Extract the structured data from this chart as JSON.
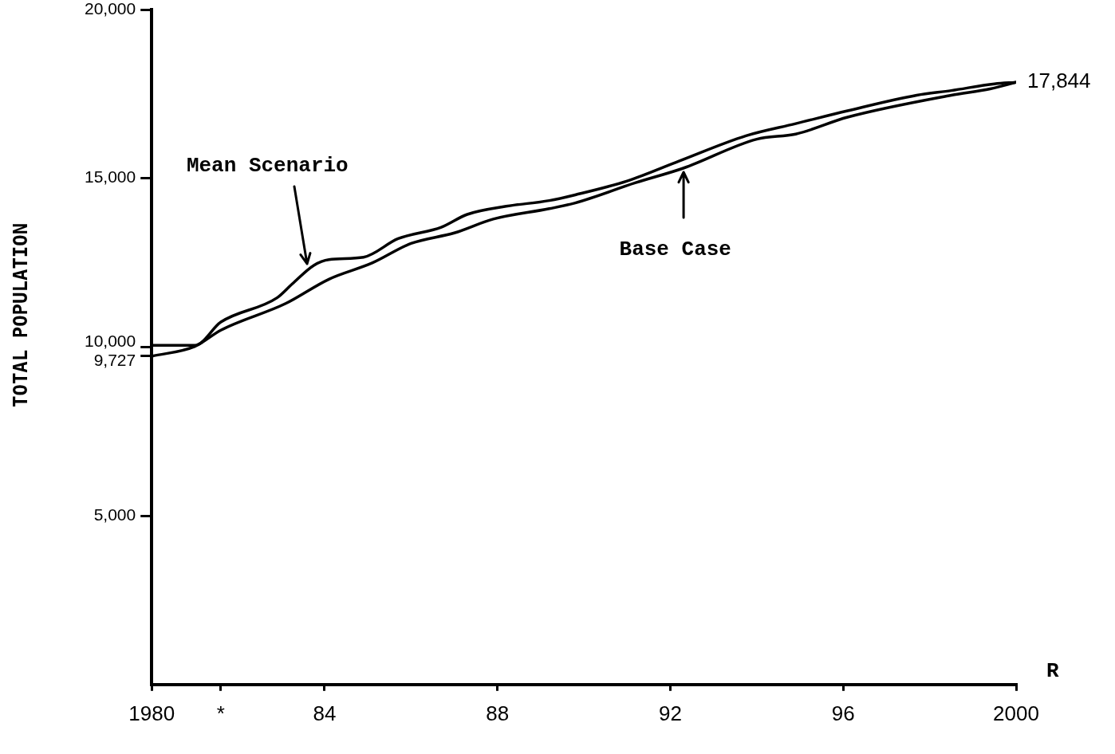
{
  "chart_data": {
    "type": "line",
    "ylabel": "TOTAL POPULATION",
    "xlabel": "R",
    "xlim": [
      1980,
      2000
    ],
    "xticks": [
      {
        "value": 1980,
        "label": "1980"
      },
      {
        "value": 1981.6,
        "label": "*"
      },
      {
        "value": 1984,
        "label": "84"
      },
      {
        "value": 1988,
        "label": "88"
      },
      {
        "value": 1992,
        "label": "92"
      },
      {
        "value": 1996,
        "label": "96"
      },
      {
        "value": 2000,
        "label": "2000"
      }
    ],
    "ylim": [
      0,
      20000
    ],
    "yticks": [
      {
        "value": 5000,
        "label": "5,000"
      },
      {
        "value": 9727,
        "label": "9,727"
      },
      {
        "value": 10000,
        "label": "10,000"
      },
      {
        "value": 15000,
        "label": "15,000"
      },
      {
        "value": 20000,
        "label": "20,000"
      }
    ],
    "grid": false,
    "legend": false,
    "marker": "none",
    "line_style": "solid",
    "series": [
      {
        "color": "#000000",
        "x": [
          1980,
          1981,
          1981.6,
          1982.9,
          1983.25,
          1983.75,
          1984.1,
          1984.9,
          1985.7,
          1986.7,
          1987.3,
          1988.2,
          1989.2,
          1989.8,
          1991,
          1992.2,
          1993.75,
          1994.9,
          1996.1,
          1997.7,
          1998.5,
          1999.5,
          2000
        ],
        "values": [
          10050,
          10050,
          10740,
          11460,
          11870,
          12420,
          12590,
          12660,
          13210,
          13550,
          13930,
          14170,
          14340,
          14510,
          14920,
          15510,
          16260,
          16620,
          17000,
          17460,
          17600,
          17800,
          17844
        ]
      },
      {
        "color": "#000000",
        "x": [
          1980,
          1981,
          1981.6,
          1983.1,
          1984.1,
          1985.1,
          1986,
          1987,
          1987.9,
          1989.2,
          1989.8,
          1991.2,
          1992.3,
          1994,
          1994.9,
          1996.1,
          1998.5,
          1999.4,
          2000
        ],
        "values": [
          9727,
          10020,
          10500,
          11290,
          12010,
          12490,
          13070,
          13380,
          13790,
          14100,
          14270,
          14870,
          15300,
          16160,
          16310,
          16810,
          17460,
          17650,
          17844
        ]
      }
    ],
    "annotations": [
      {
        "text": "Mean Scenario",
        "x": 1983.6,
        "y": 12400
      },
      {
        "text": "Base Case",
        "x": 1992.3,
        "y": 15250
      },
      {
        "text": "17,844",
        "x": 2000,
        "y": 17844
      }
    ]
  }
}
